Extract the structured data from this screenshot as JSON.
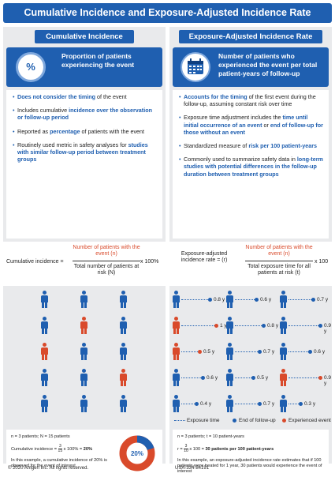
{
  "title": "Cumulative Incidence and Exposure-Adjusted Incidence Rate",
  "left": {
    "header": "Cumulative Incidence",
    "icon_text": "%",
    "definition": "Proportion of patients experiencing the event",
    "bullets": [
      [
        "",
        "Does not consider the timing",
        " of the event"
      ],
      [
        "Includes cumulative ",
        "incidence over the observation or follow-up period",
        ""
      ],
      [
        "Reported as ",
        "percentage",
        " of patients with the event"
      ],
      [
        "Routinely used metric in safety analyses for ",
        "studies with similar follow-up period between treatment groups",
        ""
      ]
    ],
    "formula": {
      "label": "Cumulative incidence =",
      "numerator": "Number of patients with the event (n)",
      "denominator": "Total number of patients at risk (N)",
      "multiplier": "x 100%"
    },
    "summary": {
      "line1": "n = 3 patients; N = 15 patients",
      "calc_prefix": "Cumulative incidence = ",
      "calc_num": "3",
      "calc_den": "15",
      "calc_mid": " x 100% = ",
      "calc_result": "20%",
      "note": "In this example, a cumulative incidence of 20% is observed for the event of interest",
      "donut_label": "20%"
    }
  },
  "right": {
    "header": "Exposure-Adjusted Incidence Rate",
    "definition": "Number of patients who experienced the event per total patient-years of follow-up",
    "bullets": [
      [
        "",
        "Accounts for the timing",
        " of the first event during the follow-up, assuming constant risk over time"
      ],
      [
        "Exposure time adjustment includes the ",
        "time until initial occurrence of an event",
        " or ",
        "end of follow-up for those without an event"
      ],
      [
        "Standardized measure of ",
        "risk per 100 patient-years",
        ""
      ],
      [
        "Commonly used to summarize safety data in ",
        "long-term studies with potential differences in the follow-up duration between treatment groups",
        ""
      ]
    ],
    "formula": {
      "label": "Exposure-adjusted incidence rate = (r)",
      "numerator": "Number of patients with the event (n)",
      "denominator": "Total exposure time for all patients at risk (t)",
      "multiplier": "x 100"
    },
    "timelines": [
      [
        "0.8 y",
        "0.6 y",
        "0.7 y"
      ],
      [
        "1 y",
        "0.8 y",
        "0.9 y"
      ],
      [
        "0.5 y",
        "0.7 y",
        "0.6 y"
      ],
      [
        "0.6 y",
        "0.5 y",
        "0.9 y"
      ],
      [
        "0.4 y",
        "0.7 y",
        "0.3 y"
      ]
    ],
    "legend": {
      "exposure": "Exposure time",
      "end": "End of follow-up",
      "event": "Experienced event"
    },
    "summary": {
      "line1": "n = 3 patients; t = 10 patient-years",
      "calc_prefix": "r = ",
      "calc_num": "3",
      "calc_den": "10",
      "calc_mid": " x 100 = ",
      "calc_result": "30 patients per 100 patient-years",
      "note": "In this example, an exposure-adjusted incidence rate estimates that if 100 patients were treated for 1 year, 30 patients would experience the event of interest"
    }
  },
  "footer": {
    "copyright": "© 2020 Amgen Inc. All rights reserved.",
    "code": "USA-334-84191"
  },
  "colors": {
    "blue": "#1f5fb0",
    "red": "#d94a2b",
    "panel": "#e9eaec"
  },
  "icons": [
    "percent-icon",
    "calendar-icon",
    "person-icon"
  ],
  "left_grid": {
    "rows": 5,
    "cols": 3,
    "event_cells": [
      [
        1,
        1
      ],
      [
        2,
        0
      ],
      [
        3,
        2
      ]
    ]
  },
  "right_grid": {
    "event_cells": [
      [
        1,
        0
      ],
      [
        2,
        0
      ],
      [
        3,
        2
      ]
    ]
  }
}
